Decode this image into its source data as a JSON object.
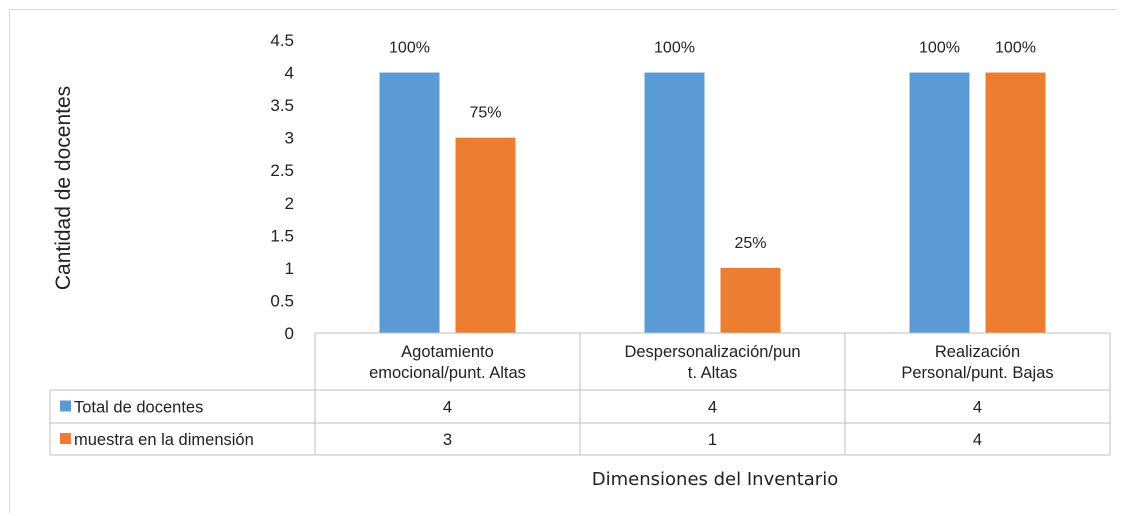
{
  "chart_data": {
    "type": "bar",
    "categories": [
      [
        "Agotamiento",
        "emocional/punt. Altas"
      ],
      [
        "Despersonalización/pun",
        "t. Altas"
      ],
      [
        "Realización",
        "Personal/punt. Bajas"
      ]
    ],
    "series": [
      {
        "name": "Total de docentes",
        "color": "#5b9bd5",
        "values": [
          4,
          4,
          4
        ],
        "labels": [
          "100%",
          "100%",
          "100%"
        ],
        "table_values": [
          "4",
          "4",
          "4"
        ]
      },
      {
        "name": "muestra en la dimensión",
        "color": "#ed7d31",
        "values": [
          3,
          1,
          4
        ],
        "labels": [
          "75%",
          "25%",
          "100%"
        ],
        "table_values": [
          "3",
          "1",
          "4"
        ]
      }
    ],
    "ylabel": "Cantidad de docentes",
    "xlabel": "Dimensiones del Inventario",
    "ylim": [
      0,
      4.5
    ],
    "yticks": [
      "0",
      "0.5",
      "1",
      "1.5",
      "2",
      "2.5",
      "3",
      "3.5",
      "4",
      "4.5"
    ],
    "grid": false,
    "legend": "data-table"
  }
}
